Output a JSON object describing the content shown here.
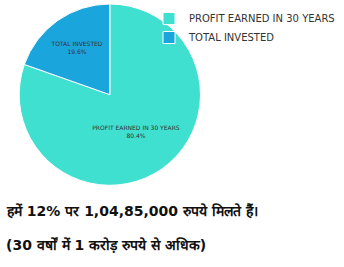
{
  "chart_data": {
    "type": "pie",
    "categories": [
      "PROFIT EARNED IN 30 YEARS",
      "TOTAL INVESTED"
    ],
    "values": [
      80.4,
      19.6
    ],
    "value_labels": [
      "80.4%",
      "19.6%"
    ],
    "colors": [
      "#40e0d0",
      "#1ba5dd"
    ],
    "data_labels": true,
    "legend": "top right",
    "annotations": [
      "हमें 12% पर 1,04,85,000 रुपये मिलते हैं।",
      "(30 वर्षों में 1 करोड़ रुपये से अधिक)"
    ]
  }
}
